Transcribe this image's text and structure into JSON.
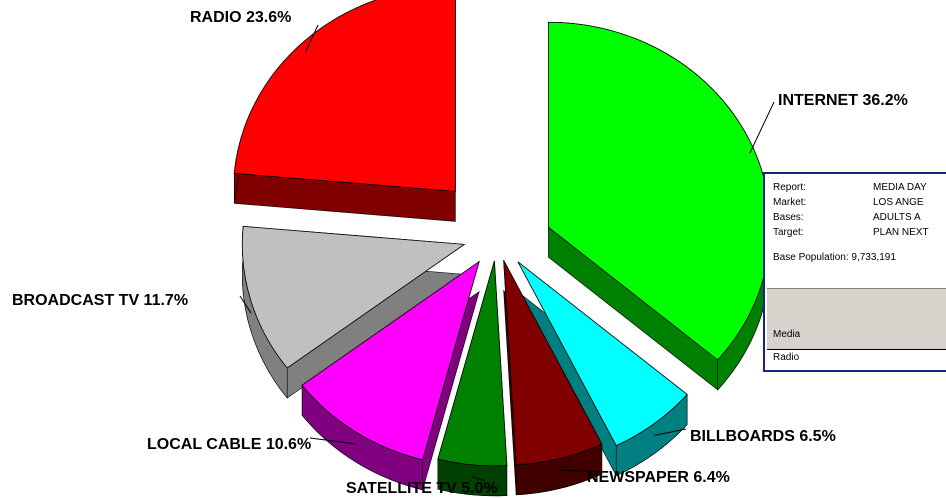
{
  "chart_data": {
    "type": "pie",
    "title": "",
    "slices": [
      {
        "label": "INTERNET",
        "value": 36.2,
        "display": "INTERNET 36.2%",
        "color": "#00ff00",
        "side_color": "#008000"
      },
      {
        "label": "BILLBOARDS",
        "value": 6.5,
        "display": "BILLBOARDS 6.5%",
        "color": "#00ffff",
        "side_color": "#008080"
      },
      {
        "label": "NEWSPAPER",
        "value": 6.4,
        "display": "NEWSPAPER 6.4%",
        "color": "#800000",
        "side_color": "#400000"
      },
      {
        "label": "SATELLITE TV",
        "value": 5.0,
        "display": "SATELLITE TV 5.0%",
        "color": "#008000",
        "side_color": "#004000"
      },
      {
        "label": "LOCAL CABLE",
        "value": 10.6,
        "display": "LOCAL CABLE 10.6%",
        "color": "#ff00ff",
        "side_color": "#800080"
      },
      {
        "label": "BROADCAST TV",
        "value": 11.7,
        "display": "BROADCAST TV 11.7%",
        "color": "#c0c0c0",
        "side_color": "#808080"
      },
      {
        "label": "RADIO",
        "value": 23.6,
        "display": "RADIO 23.6%",
        "color": "#ff0000",
        "side_color": "#800000"
      }
    ],
    "exploded": true,
    "three_d": true
  },
  "report_panel": {
    "rows": [
      {
        "key": "Report:",
        "value": "MEDIA DAY"
      },
      {
        "key": "Market:",
        "value": "LOS ANGE"
      },
      {
        "key": "Bases:",
        "value": "ADULTS A"
      },
      {
        "key": "Target:",
        "value": "PLAN NEXT"
      }
    ],
    "base_population": "Base Population: 9,733,191",
    "column_header": "Media",
    "first_cell": "Radio",
    "border_color": "#1a237e",
    "header_bg": "#d7d3cc"
  }
}
